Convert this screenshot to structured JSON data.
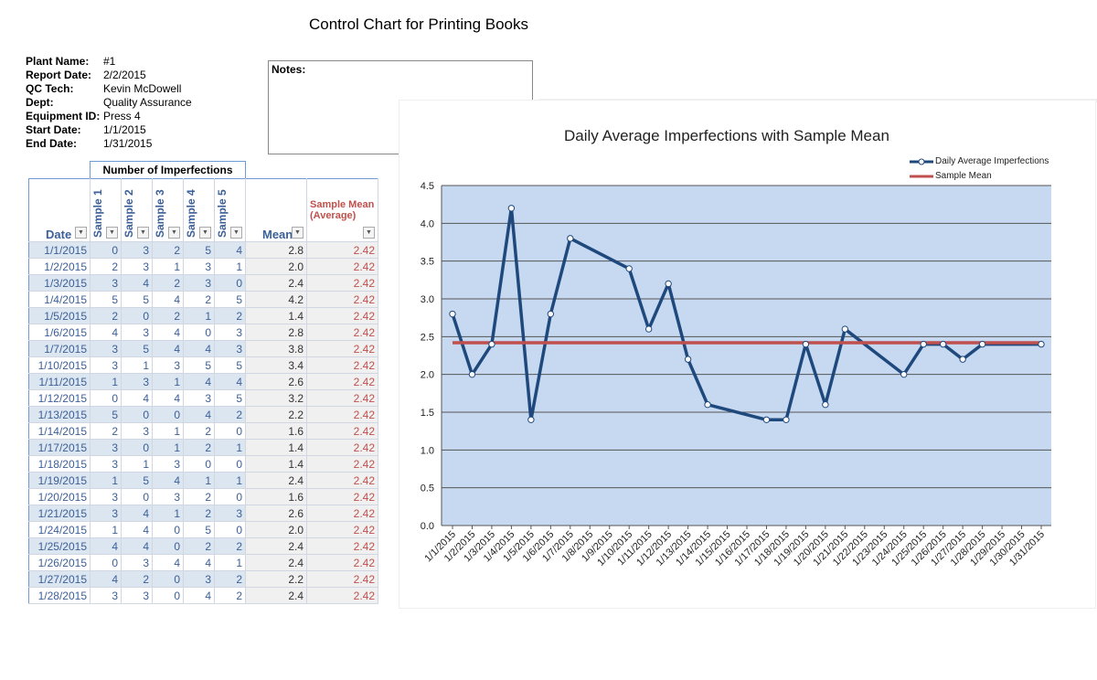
{
  "title": "Control Chart for Printing Books",
  "info": [
    {
      "label": "Plant Name:",
      "value": "#1"
    },
    {
      "label": "Report Date:",
      "value": "2/2/2015"
    },
    {
      "label": "QC Tech:",
      "value": "Kevin McDowell"
    },
    {
      "label": "Dept:",
      "value": "Quality Assurance"
    },
    {
      "label": "Equipment ID:",
      "value": "Press 4"
    },
    {
      "label": "Start Date:",
      "value": "1/1/2015"
    },
    {
      "label": "End Date:",
      "value": "1/31/2015"
    }
  ],
  "notes_label": "Notes:",
  "table": {
    "group_header": "Number of Imperfections",
    "headers": [
      "Date",
      "Sample 1",
      "Sample 2",
      "Sample 3",
      "Sample 4",
      "Sample 5",
      "Mean",
      "Sample Mean (Average)"
    ],
    "rows": [
      [
        "1/1/2015",
        "0",
        "3",
        "2",
        "5",
        "4",
        "2.8",
        "2.42"
      ],
      [
        "1/2/2015",
        "2",
        "3",
        "1",
        "3",
        "1",
        "2.0",
        "2.42"
      ],
      [
        "1/3/2015",
        "3",
        "4",
        "2",
        "3",
        "0",
        "2.4",
        "2.42"
      ],
      [
        "1/4/2015",
        "5",
        "5",
        "4",
        "2",
        "5",
        "4.2",
        "2.42"
      ],
      [
        "1/5/2015",
        "2",
        "0",
        "2",
        "1",
        "2",
        "1.4",
        "2.42"
      ],
      [
        "1/6/2015",
        "4",
        "3",
        "4",
        "0",
        "3",
        "2.8",
        "2.42"
      ],
      [
        "1/7/2015",
        "3",
        "5",
        "4",
        "4",
        "3",
        "3.8",
        "2.42"
      ],
      [
        "1/10/2015",
        "3",
        "1",
        "3",
        "5",
        "5",
        "3.4",
        "2.42"
      ],
      [
        "1/11/2015",
        "1",
        "3",
        "1",
        "4",
        "4",
        "2.6",
        "2.42"
      ],
      [
        "1/12/2015",
        "0",
        "4",
        "4",
        "3",
        "5",
        "3.2",
        "2.42"
      ],
      [
        "1/13/2015",
        "5",
        "0",
        "0",
        "4",
        "2",
        "2.2",
        "2.42"
      ],
      [
        "1/14/2015",
        "2",
        "3",
        "1",
        "2",
        "0",
        "1.6",
        "2.42"
      ],
      [
        "1/17/2015",
        "3",
        "0",
        "1",
        "2",
        "1",
        "1.4",
        "2.42"
      ],
      [
        "1/18/2015",
        "3",
        "1",
        "3",
        "0",
        "0",
        "1.4",
        "2.42"
      ],
      [
        "1/19/2015",
        "1",
        "5",
        "4",
        "1",
        "1",
        "2.4",
        "2.42"
      ],
      [
        "1/20/2015",
        "3",
        "0",
        "3",
        "2",
        "0",
        "1.6",
        "2.42"
      ],
      [
        "1/21/2015",
        "3",
        "4",
        "1",
        "2",
        "3",
        "2.6",
        "2.42"
      ],
      [
        "1/24/2015",
        "1",
        "4",
        "0",
        "5",
        "0",
        "2.0",
        "2.42"
      ],
      [
        "1/25/2015",
        "4",
        "4",
        "0",
        "2",
        "2",
        "2.4",
        "2.42"
      ],
      [
        "1/26/2015",
        "0",
        "3",
        "4",
        "4",
        "1",
        "2.4",
        "2.42"
      ],
      [
        "1/27/2015",
        "4",
        "2",
        "0",
        "3",
        "2",
        "2.2",
        "2.42"
      ],
      [
        "1/28/2015",
        "3",
        "3",
        "0",
        "4",
        "2",
        "2.4",
        "2.42"
      ]
    ]
  },
  "chart_data": {
    "type": "line",
    "title": "Daily Average Imperfections with Sample Mean",
    "xlabel": "",
    "ylabel": "",
    "ylim": [
      0,
      4.5
    ],
    "yticks": [
      "0.0",
      "0.5",
      "1.0",
      "1.5",
      "2.0",
      "2.5",
      "3.0",
      "3.5",
      "4.0",
      "4.5"
    ],
    "xticks": [
      "1/1/2015",
      "1/2/2015",
      "1/3/2015",
      "1/4/2015",
      "1/5/2015",
      "1/6/2015",
      "1/7/2015",
      "1/8/2015",
      "1/9/2015",
      "1/10/2015",
      "1/11/2015",
      "1/12/2015",
      "1/13/2015",
      "1/14/2015",
      "1/15/2015",
      "1/16/2015",
      "1/17/2015",
      "1/18/2015",
      "1/19/2015",
      "1/20/2015",
      "1/21/2015",
      "1/22/2015",
      "1/23/2015",
      "1/24/2015",
      "1/25/2015",
      "1/26/2015",
      "1/27/2015",
      "1/28/2015",
      "1/29/2015",
      "1/30/2015",
      "1/31/2015"
    ],
    "grid": true,
    "legend": "top-right",
    "plot_background": "#c6d9f1",
    "series": [
      {
        "name": "Daily Average Imperfections",
        "color": "#1f497d",
        "marker": "circle",
        "x": [
          "1/1/2015",
          "1/2/2015",
          "1/3/2015",
          "1/4/2015",
          "1/5/2015",
          "1/6/2015",
          "1/7/2015",
          "1/10/2015",
          "1/11/2015",
          "1/12/2015",
          "1/13/2015",
          "1/14/2015",
          "1/17/2015",
          "1/18/2015",
          "1/19/2015",
          "1/20/2015",
          "1/21/2015",
          "1/24/2015",
          "1/25/2015",
          "1/26/2015",
          "1/27/2015",
          "1/28/2015",
          "1/31/2015"
        ],
        "y": [
          2.8,
          2.0,
          2.4,
          4.2,
          1.4,
          2.8,
          3.8,
          3.4,
          2.6,
          3.2,
          2.2,
          1.6,
          1.4,
          1.4,
          2.4,
          1.6,
          2.6,
          2.0,
          2.4,
          2.4,
          2.2,
          2.4,
          2.4
        ]
      },
      {
        "name": "Sample Mean",
        "color": "#c0504d",
        "x": [
          "1/1/2015",
          "1/31/2015"
        ],
        "y": [
          2.42,
          2.42
        ]
      }
    ]
  }
}
